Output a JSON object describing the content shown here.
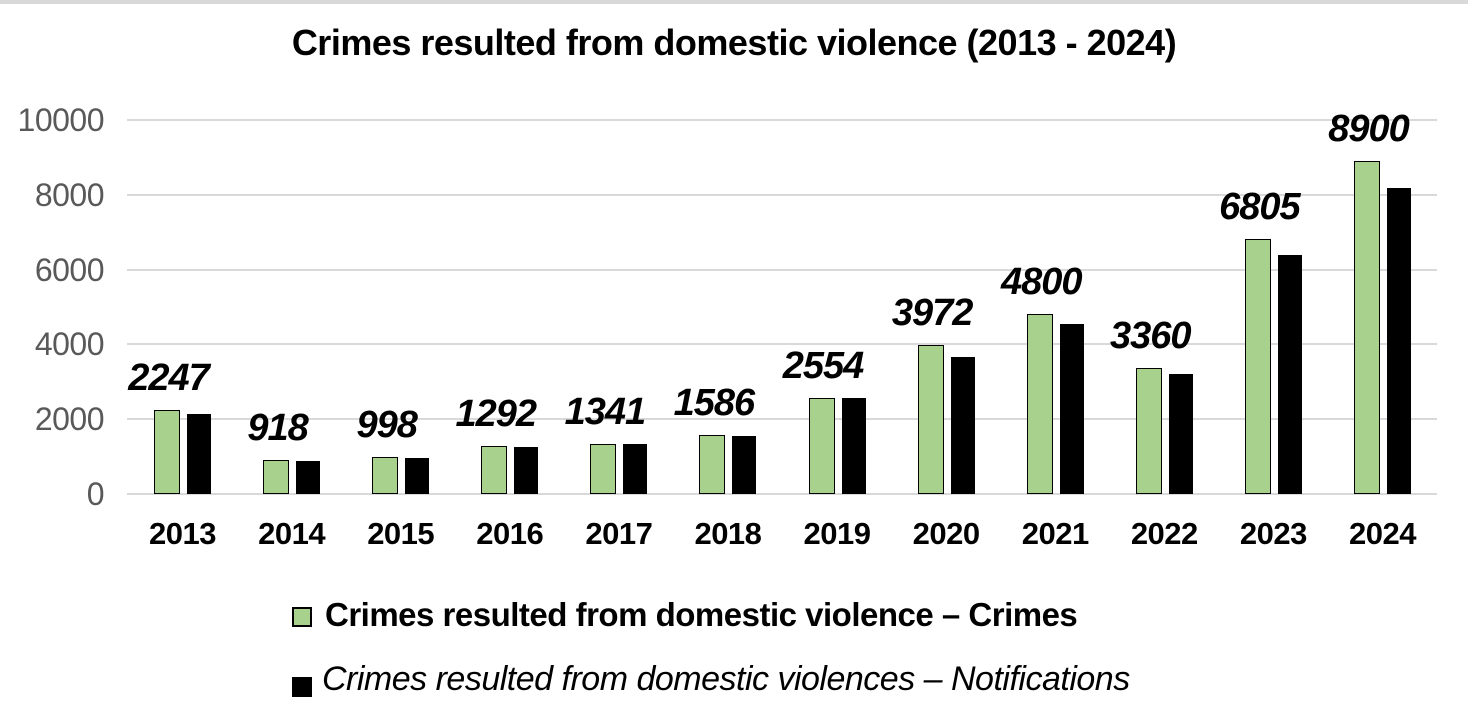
{
  "chart_data": {
    "type": "bar",
    "title": "Crimes resulted from domestic violence (2013 - 2024)",
    "categories": [
      "2013",
      "2014",
      "2015",
      "2016",
      "2017",
      "2018",
      "2019",
      "2020",
      "2021",
      "2022",
      "2023",
      "2024"
    ],
    "series": [
      {
        "name": "Crimes resulted from domestic violence – Crimes",
        "color": "#a9d18e",
        "values": [
          2247,
          918,
          998,
          1292,
          1341,
          1586,
          2554,
          3972,
          4800,
          3360,
          6805,
          8900
        ],
        "data_labels": [
          "2247",
          "918",
          "998",
          "1292",
          "1341",
          "1586",
          "2554",
          "3972",
          "4800",
          "3360",
          "6805",
          "8900"
        ]
      },
      {
        "name": "Crimes resulted from domestic violences – Notifications",
        "color": "#000000",
        "values": [
          2150,
          890,
          960,
          1260,
          1330,
          1560,
          2570,
          3650,
          4550,
          3200,
          6400,
          8180
        ],
        "data_labels": []
      }
    ],
    "xlabel": "",
    "ylabel": "",
    "ylim": [
      0,
      10000
    ],
    "yticks": [
      10000,
      8000,
      6000,
      4000,
      2000,
      0
    ],
    "ytick_labels": [
      "10000",
      "8000",
      "6000",
      "4000",
      "2000",
      "0"
    ],
    "grid": true,
    "gridline_color": "#d9d9d9",
    "legend_position": "bottom-left"
  }
}
